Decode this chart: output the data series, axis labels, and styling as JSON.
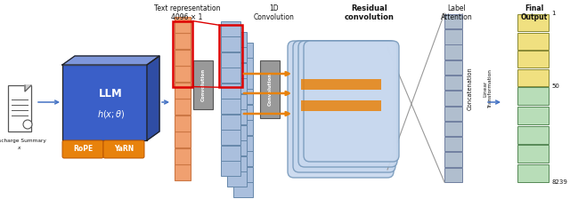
{
  "bg_color": "#ffffff",
  "discharge_label": "Discharge Summary\n$x$",
  "text_repr_label": "Text representation\n4096 × 1",
  "conv1d_label": "1D\nConvolution",
  "residual_label": "Residual\nconvolution",
  "label_attn_label": "Label\nAttention",
  "final_output_label": "Final\nOutput",
  "concat_label": "Concatenation",
  "linear_label": "Linear\nTransformation",
  "llm_color": "#3a5fc8",
  "llm_color_light": "#5a80e8",
  "llm_color_dark": "#2a4fb0",
  "orange_color": "#e8820c",
  "red_color": "#dd0000",
  "gray_conv_color": "#999999",
  "tall_bar_color": "#f0a070",
  "tall_bar_edge": "#cc7744",
  "blue_bar_color": "#aabfdd",
  "blue_bar_edge": "#6688aa",
  "residual_fill": "#c8d8ee",
  "residual_edge": "#7799bb",
  "label_attn_fill": "#b0bece",
  "label_attn_edge": "#7080a0",
  "final_yellow": "#f0e080",
  "final_yellow_edge": "#c8b840",
  "final_green": "#b8ddb8",
  "final_green_edge": "#78b078",
  "arrow_color": "#4472c4",
  "doc_line_color": "#888888",
  "gray_line_color": "#999999"
}
